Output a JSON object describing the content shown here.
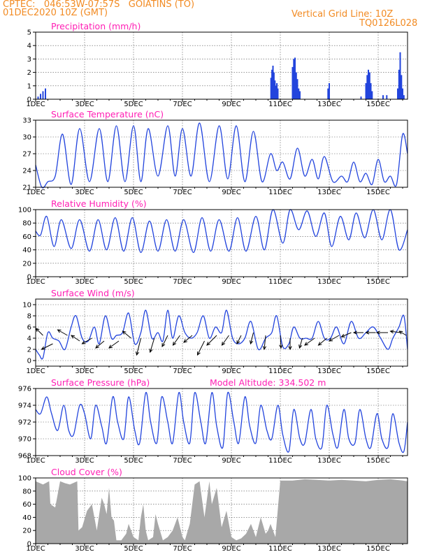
{
  "header": {
    "line1": "CPTEC:   046:53W-07:57S   GOIATINS (TO)",
    "line2": "01DEC2020 10Z (GMT)",
    "grid_note": "Vertical Grid Line: 10Z",
    "run_code": "TQ0126L028",
    "color": "#f28b23"
  },
  "colors": {
    "title": "#ff1fb4",
    "series": "#2244dd",
    "cloud": "#a8a8a8",
    "axis": "#000000"
  },
  "x_ticks": [
    "1DEC",
    "3DEC",
    "5DEC",
    "7DEC",
    "9DEC",
    "11DEC",
    "13DEC",
    "15DEC"
  ],
  "x_range_days": [
    1,
    16.2
  ],
  "chart_data": [
    {
      "id": "precip",
      "type": "bar",
      "title": "Precipitation (mm/h)",
      "ylim": [
        0,
        5
      ],
      "yticks": [
        0,
        1,
        2,
        3,
        4,
        5
      ],
      "grid": true,
      "x": [
        1.1,
        1.2,
        1.3,
        1.4,
        10.62,
        10.66,
        10.7,
        10.74,
        10.78,
        10.82,
        10.86,
        10.9,
        11.5,
        11.55,
        11.6,
        11.65,
        11.7,
        11.75,
        11.8,
        12.95,
        13.0,
        14.3,
        14.5,
        14.55,
        14.6,
        14.65,
        14.7,
        14.75,
        15.2,
        15.35,
        15.8,
        15.85,
        15.9,
        15.95,
        16.0,
        16.05
      ],
      "values": [
        0.2,
        0.4,
        0.6,
        0.8,
        1.6,
        2.2,
        2.5,
        2.0,
        1.4,
        1.0,
        1.2,
        0.8,
        2.4,
        3.0,
        3.1,
        2.0,
        1.5,
        0.8,
        0.6,
        0.8,
        1.2,
        0.2,
        1.2,
        1.8,
        2.2,
        2.0,
        1.2,
        0.6,
        0.3,
        0.3,
        0.8,
        2.2,
        3.5,
        1.8,
        0.8,
        0.3
      ]
    },
    {
      "id": "temp",
      "type": "line",
      "title": "Surface Temperature (nC)",
      "ylim": [
        21,
        33
      ],
      "yticks": [
        21,
        24,
        27,
        30,
        33
      ],
      "grid": true,
      "peak_x": [
        1.0,
        1.5,
        2.1,
        2.8,
        3.6,
        4.3,
        5.0,
        5.6,
        6.4,
        7.0,
        7.7,
        8.5,
        9.2,
        9.9,
        10.6,
        11.1,
        11.7,
        12.3,
        12.8,
        13.5,
        14.0,
        14.5,
        15.0,
        15.5,
        16.0,
        16.2
      ],
      "peak_y": [
        25,
        22,
        30.5,
        31.5,
        31.5,
        32,
        32,
        31.5,
        32,
        31.5,
        32.5,
        32,
        32,
        31,
        27,
        25.5,
        28,
        26,
        26.5,
        23,
        25.5,
        23.5,
        26,
        23,
        30.5,
        27
      ],
      "trough_x": [
        1.25,
        1.8,
        2.45,
        3.2,
        3.95,
        4.65,
        5.3,
        6.0,
        6.7,
        7.35,
        8.1,
        8.85,
        9.55,
        10.25,
        10.85,
        11.4,
        12.0,
        12.55,
        13.15,
        13.75,
        14.25,
        14.75,
        15.25,
        15.75
      ],
      "trough_y": [
        21,
        23,
        21.5,
        22,
        22,
        22,
        22,
        23,
        23,
        23,
        22,
        22.5,
        22,
        22,
        24,
        22.5,
        23,
        22.5,
        22,
        22,
        22,
        21.5,
        22,
        21.5
      ]
    },
    {
      "id": "rh",
      "type": "line",
      "title": "Relative Humidity (%)",
      "ylim": [
        0,
        100
      ],
      "yticks": [
        0,
        20,
        40,
        60,
        80,
        100
      ],
      "grid": true,
      "peak_x": [
        1.0,
        1.45,
        2.05,
        2.8,
        3.55,
        4.25,
        4.95,
        5.65,
        6.35,
        7.05,
        7.8,
        8.5,
        9.25,
        10.0,
        10.7,
        11.4,
        12.1,
        12.8,
        13.45,
        14.1,
        14.8,
        15.5,
        16.2
      ],
      "peak_y": [
        68,
        90,
        85,
        85,
        85,
        88,
        88,
        83,
        85,
        85,
        88,
        85,
        88,
        90,
        100,
        100,
        98,
        95,
        90,
        95,
        100,
        100,
        70
      ],
      "trough_x": [
        1.2,
        1.75,
        2.45,
        3.2,
        3.9,
        4.6,
        5.3,
        6.0,
        6.7,
        7.45,
        8.15,
        8.9,
        9.6,
        10.35,
        11.1,
        11.75,
        12.45,
        13.1,
        13.8,
        14.45,
        15.15,
        15.85
      ],
      "trough_y": [
        62,
        45,
        42,
        38,
        40,
        38,
        36,
        38,
        38,
        36,
        38,
        38,
        38,
        40,
        50,
        70,
        60,
        45,
        55,
        58,
        55,
        40
      ]
    },
    {
      "id": "wind",
      "type": "line",
      "title": "Surface Wind (m/s)",
      "ylim": [
        -1,
        11
      ],
      "yticks": [
        0,
        2,
        4,
        6,
        8,
        10
      ],
      "grid": true,
      "x": [
        1.0,
        1.15,
        1.3,
        1.5,
        1.7,
        1.95,
        2.2,
        2.45,
        2.65,
        2.9,
        3.15,
        3.4,
        3.6,
        3.85,
        4.1,
        4.3,
        4.55,
        4.8,
        5.05,
        5.3,
        5.5,
        5.75,
        6.0,
        6.2,
        6.4,
        6.6,
        6.85,
        7.1,
        7.35,
        7.6,
        7.85,
        8.1,
        8.35,
        8.6,
        8.8,
        9.05,
        9.3,
        9.55,
        9.8,
        10.1,
        10.4,
        10.65,
        10.85,
        11.1,
        11.35,
        11.55,
        11.8,
        12.05,
        12.3,
        12.55,
        12.8,
        13.05,
        13.3,
        13.6,
        13.9,
        14.2,
        14.5,
        14.8,
        15.1,
        15.4,
        15.6,
        15.85,
        16.05,
        16.2
      ],
      "values": [
        2,
        1,
        0.5,
        5,
        4,
        3.5,
        2,
        6,
        8,
        4,
        3.5,
        6,
        3,
        8,
        4,
        4.5,
        5,
        8.5,
        3,
        5,
        9,
        4,
        5,
        3.5,
        9,
        4,
        8,
        5,
        4,
        5,
        8,
        4,
        6,
        5,
        9,
        4,
        3,
        4,
        7,
        2,
        4,
        5,
        8,
        2.5,
        3,
        6,
        4,
        4,
        4,
        7,
        4,
        4,
        6,
        3,
        7,
        4,
        5,
        6,
        4,
        2,
        4,
        6,
        8,
        2
      ],
      "arrow_x": [
        1.3,
        1.7,
        2.3,
        2.8,
        3.3,
        3.8,
        4.4,
        4.9,
        5.3,
        5.85,
        6.4,
        6.9,
        7.4,
        7.9,
        8.4,
        8.9,
        9.4,
        9.9,
        10.4,
        11.0,
        11.4,
        11.9,
        12.4,
        12.9,
        13.4,
        13.9,
        14.4,
        14.9,
        15.4,
        15.9,
        16.15
      ],
      "arrow_y": [
        4.5,
        3,
        4.5,
        3.5,
        4,
        3.5,
        3.5,
        4,
        4,
        4,
        4.5,
        4.5,
        4.5,
        3.5,
        4.5,
        4.5,
        4.5,
        5,
        4.5,
        4.5,
        4,
        4,
        4,
        4,
        4.5,
        5,
        5,
        5,
        5,
        5,
        4.5
      ],
      "arrow_u": [
        -10,
        -16,
        -14,
        -12,
        -14,
        -12,
        -14,
        -12,
        -6,
        -6,
        -8,
        -10,
        -12,
        -10,
        -14,
        -10,
        -6,
        -4,
        -2,
        1,
        0,
        -4,
        -14,
        -12,
        -14,
        -14,
        -14,
        -14,
        -16,
        -14,
        -10
      ],
      "arrow_v": [
        10,
        -8,
        8,
        8,
        -8,
        -10,
        -10,
        10,
        -24,
        -20,
        -16,
        -14,
        -10,
        -20,
        -14,
        -14,
        -12,
        -16,
        -20,
        -18,
        -16,
        -14,
        -10,
        -10,
        -8,
        -6,
        0,
        0,
        0,
        2,
        6
      ]
    },
    {
      "id": "pres",
      "type": "line",
      "title": "Surface Pressure (hPa)",
      "note": "Model Altitude: 334.502  m",
      "ylim": [
        968,
        976
      ],
      "yticks": [
        968,
        970,
        972,
        974,
        976
      ],
      "grid": true,
      "x": [
        1.0,
        1.2,
        1.45,
        1.65,
        1.9,
        2.15,
        2.35,
        2.55,
        2.8,
        3.0,
        3.25,
        3.45,
        3.7,
        3.9,
        4.15,
        4.35,
        4.6,
        4.8,
        5.05,
        5.25,
        5.5,
        5.7,
        5.95,
        6.15,
        6.4,
        6.6,
        6.85,
        7.05,
        7.3,
        7.5,
        7.75,
        7.95,
        8.2,
        8.4,
        8.65,
        8.85,
        9.1,
        9.3,
        9.55,
        9.75,
        10.0,
        10.2,
        10.45,
        10.65,
        10.9,
        11.1,
        11.35,
        11.55,
        11.8,
        12.0,
        12.25,
        12.45,
        12.7,
        12.9,
        13.15,
        13.35,
        13.6,
        13.8,
        14.05,
        14.25,
        14.5,
        14.7,
        14.95,
        15.15,
        15.4,
        15.6,
        15.85,
        16.05,
        16.2
      ],
      "values": [
        973.5,
        973,
        975,
        973,
        971,
        974,
        971,
        970.5,
        974,
        973,
        970,
        974,
        971.5,
        969.5,
        975,
        972,
        970,
        975,
        971,
        969.5,
        975.5,
        972,
        969.5,
        975,
        972,
        969.5,
        975.5,
        972,
        969.5,
        975.5,
        972,
        969.5,
        975.5,
        971.5,
        969,
        975.5,
        972,
        969.5,
        975,
        971.5,
        969.5,
        974,
        971,
        970,
        974,
        970.5,
        968.5,
        973.5,
        970,
        969.5,
        973.5,
        970,
        969,
        974,
        970.5,
        969,
        973.5,
        970,
        969.5,
        973.5,
        970,
        969,
        973,
        970,
        969,
        973,
        969.5,
        968.5,
        972
      ]
    },
    {
      "id": "cloud",
      "type": "area",
      "title": "Cloud Cover (%)",
      "ylim": [
        0,
        100
      ],
      "yticks": [
        0,
        20,
        40,
        60,
        80,
        100
      ],
      "grid": true,
      "x": [
        1.0,
        1.3,
        1.55,
        1.6,
        1.8,
        2.0,
        2.2,
        2.4,
        2.7,
        2.75,
        2.9,
        3.1,
        3.3,
        3.4,
        3.5,
        3.7,
        3.8,
        3.9,
        4.0,
        4.1,
        4.2,
        4.3,
        4.5,
        4.7,
        4.8,
        5.0,
        5.2,
        5.3,
        5.4,
        5.5,
        5.6,
        5.8,
        5.9,
        6.0,
        6.2,
        6.4,
        6.6,
        6.8,
        7.0,
        7.1,
        7.3,
        7.5,
        7.7,
        7.9,
        8.1,
        8.2,
        8.4,
        8.6,
        8.8,
        9.0,
        9.2,
        9.4,
        9.6,
        9.8,
        10.0,
        10.2,
        10.4,
        10.5,
        10.6,
        10.8,
        11.0,
        11.5,
        12.0,
        12.5,
        13.0,
        13.5,
        14.0,
        14.5,
        15.0,
        15.5,
        16.0,
        16.2
      ],
      "values": [
        95,
        90,
        95,
        60,
        55,
        95,
        92,
        90,
        95,
        20,
        25,
        50,
        60,
        40,
        20,
        70,
        60,
        45,
        85,
        40,
        35,
        5,
        5,
        15,
        30,
        10,
        5,
        40,
        60,
        20,
        5,
        10,
        45,
        30,
        5,
        10,
        20,
        40,
        10,
        5,
        30,
        90,
        95,
        40,
        95,
        60,
        85,
        25,
        50,
        10,
        5,
        8,
        15,
        30,
        10,
        40,
        15,
        20,
        30,
        10,
        96,
        96,
        98,
        97,
        96,
        97,
        96,
        95,
        97,
        98,
        96,
        95
      ]
    }
  ]
}
